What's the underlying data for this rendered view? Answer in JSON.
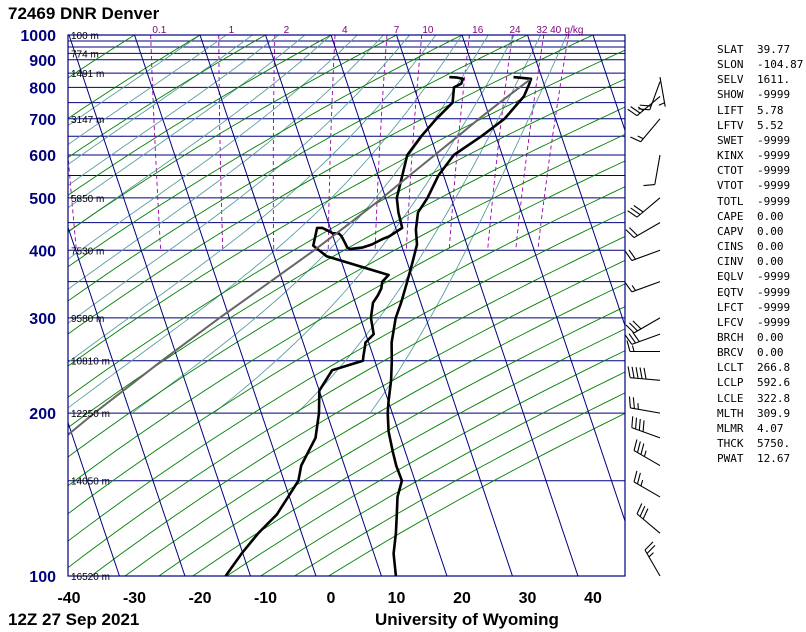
{
  "header": {
    "title": "72469 DNR Denver"
  },
  "footer": {
    "time": "12Z 27 Sep 2021",
    "source": "University of Wyoming"
  },
  "chart_data": {
    "type": "skew-t log-p",
    "pressure_ticks": [
      100,
      200,
      300,
      400,
      500,
      600,
      700,
      800,
      900,
      1000
    ],
    "temperature_ticks": [
      -40,
      -30,
      -20,
      -10,
      0,
      10,
      20,
      30,
      40
    ],
    "xlim": [
      -40,
      45
    ],
    "ylim_hpa": [
      1000,
      100
    ],
    "height_labels": [
      {
        "p": 100,
        "label": "16520 m"
      },
      {
        "p": 150,
        "label": "14050 m"
      },
      {
        "p": 200,
        "label": "12250 m"
      },
      {
        "p": 250,
        "label": "10810 m"
      },
      {
        "p": 300,
        "label": "9580 m"
      },
      {
        "p": 400,
        "label": "7530 m"
      },
      {
        "p": 500,
        "label": "5850 m"
      },
      {
        "p": 700,
        "label": "3147 m"
      },
      {
        "p": 850,
        "label": "1491 m"
      },
      {
        "p": 925,
        "label": "774 m"
      },
      {
        "p": 1000,
        "label": "100 m"
      }
    ],
    "mixing_ratio_labels": [
      {
        "w": "0.1",
        "t": -26.2
      },
      {
        "w": "1",
        "t": -15.2
      },
      {
        "w": "2",
        "t": -6.8
      },
      {
        "w": "4",
        "t": 2.1
      },
      {
        "w": "7",
        "t": 10
      },
      {
        "w": "10",
        "t": 14.8
      },
      {
        "w": "16",
        "t": 22.4
      },
      {
        "w": "24",
        "t": 28.1
      },
      {
        "w": "32",
        "t": 32.2
      },
      {
        "w": "40",
        "t": 34.3
      },
      {
        "w": "g/kg",
        "t": 37.1
      }
    ],
    "series": [
      {
        "name": "Temperature",
        "color": "#000000",
        "points": [
          [
            836,
            25.7
          ],
          [
            830,
            28.3
          ],
          [
            813,
            27.8
          ],
          [
            770,
            26.3
          ],
          [
            700,
            22.2
          ],
          [
            650,
            17.8
          ],
          [
            600,
            12.6
          ],
          [
            550,
            9.2
          ],
          [
            500,
            6.4
          ],
          [
            470,
            4.2
          ],
          [
            437,
            3.0
          ],
          [
            410,
            2.4
          ],
          [
            380,
            0.8
          ],
          [
            350,
            -1.0
          ],
          [
            320,
            -3.0
          ],
          [
            300,
            -4.6
          ],
          [
            270,
            -6.5
          ],
          [
            250,
            -7.4
          ],
          [
            230,
            -8.5
          ],
          [
            210,
            -10.0
          ],
          [
            200,
            -10.7
          ],
          [
            185,
            -11.5
          ],
          [
            170,
            -11.9
          ],
          [
            160,
            -12.1
          ],
          [
            150,
            -12.0
          ],
          [
            140,
            -13.5
          ],
          [
            130,
            -14.5
          ],
          [
            120,
            -15.6
          ],
          [
            110,
            -17.0
          ],
          [
            100,
            -17.8
          ]
        ]
      },
      {
        "name": "Dewpoint",
        "color": "#000000",
        "points": [
          [
            836,
            15.9
          ],
          [
            834,
            17.1
          ],
          [
            830,
            17.9
          ],
          [
            813,
            17.4
          ],
          [
            800,
            16.1
          ],
          [
            775,
            15.6
          ],
          [
            750,
            15.1
          ],
          [
            700,
            11.8
          ],
          [
            650,
            8.6
          ],
          [
            600,
            5.5
          ],
          [
            550,
            3.7
          ],
          [
            500,
            1.7
          ],
          [
            470,
            1.2
          ],
          [
            440,
            1.0
          ],
          [
            424,
            -1.5
          ],
          [
            420,
            -2.5
          ],
          [
            410,
            -4.5
          ],
          [
            405,
            -6.0
          ],
          [
            402,
            -8.1
          ],
          [
            405,
            -8.4
          ],
          [
            412,
            -8.5
          ],
          [
            425,
            -8.7
          ],
          [
            430,
            -9.0
          ],
          [
            430,
            -9.9
          ],
          [
            435,
            -10.5
          ],
          [
            440,
            -11.2
          ],
          [
            440,
            -12.0
          ],
          [
            410,
            -13.4
          ],
          [
            408,
            -13.5
          ],
          [
            390,
            -12.0
          ],
          [
            360,
            -3.5
          ],
          [
            350,
            -4.8
          ],
          [
            340,
            -5.3
          ],
          [
            330,
            -6.2
          ],
          [
            320,
            -7.3
          ],
          [
            300,
            -8.4
          ],
          [
            280,
            -8.8
          ],
          [
            270,
            -10.5
          ],
          [
            265,
            -10.8
          ],
          [
            255,
            -11.5
          ],
          [
            250,
            -11.8
          ],
          [
            240,
            -17.0
          ],
          [
            220,
            -20.0
          ],
          [
            200,
            -21.2
          ],
          [
            180,
            -23.0
          ],
          [
            160,
            -26.6
          ],
          [
            150,
            -27.8
          ],
          [
            140,
            -30.2
          ],
          [
            130,
            -32.8
          ],
          [
            120,
            -36.6
          ],
          [
            110,
            -40.2
          ],
          [
            100,
            -43.8
          ]
        ]
      },
      {
        "name": "Parcel",
        "color": "#666666",
        "points": [
          [
            827,
            28.1
          ],
          [
            800,
            26.1
          ],
          [
            750,
            22.3
          ],
          [
            700,
            18.3
          ],
          [
            650,
            14.2
          ],
          [
            600,
            9.7
          ],
          [
            550,
            4.8
          ],
          [
            500,
            -0.5
          ],
          [
            450,
            -6.6
          ],
          [
            400,
            -13.6
          ],
          [
            350,
            -21.9
          ],
          [
            300,
            -31.5
          ],
          [
            250,
            -42.5
          ],
          [
            200,
            -55.5
          ],
          [
            150,
            -71.5
          ],
          [
            100,
            -92.0
          ]
        ]
      }
    ],
    "wind_barbs": [
      {
        "p": 100,
        "dir": 330,
        "kt": 25
      },
      {
        "p": 120,
        "dir": 310,
        "kt": 30
      },
      {
        "p": 140,
        "dir": 300,
        "kt": 25
      },
      {
        "p": 160,
        "dir": 300,
        "kt": 35
      },
      {
        "p": 180,
        "dir": 290,
        "kt": 40
      },
      {
        "p": 200,
        "dir": 280,
        "kt": 25
      },
      {
        "p": 230,
        "dir": 275,
        "kt": 50
      },
      {
        "p": 260,
        "dir": 270,
        "kt": 15
      },
      {
        "p": 280,
        "dir": 250,
        "kt": 30
      },
      {
        "p": 300,
        "dir": 240,
        "kt": 30
      },
      {
        "p": 350,
        "dir": 250,
        "kt": 15
      },
      {
        "p": 400,
        "dir": 250,
        "kt": 20
      },
      {
        "p": 450,
        "dir": 240,
        "kt": 20
      },
      {
        "p": 500,
        "dir": 230,
        "kt": 30
      },
      {
        "p": 600,
        "dir": 190,
        "kt": 10
      },
      {
        "p": 700,
        "dir": 220,
        "kt": 15
      },
      {
        "p": 770,
        "dir": 230,
        "kt": 25
      },
      {
        "p": 820,
        "dir": 200,
        "kt": 20
      },
      {
        "p": 836,
        "dir": 170,
        "kt": 5
      }
    ]
  },
  "parameters": [
    {
      "name": "SLAT",
      "value": "39.77"
    },
    {
      "name": "SLON",
      "value": "-104.87"
    },
    {
      "name": "SELV",
      "value": "1611."
    },
    {
      "name": "SHOW",
      "value": "-9999"
    },
    {
      "name": "LIFT",
      "value": "5.78"
    },
    {
      "name": "LFTV",
      "value": "5.52"
    },
    {
      "name": "SWET",
      "value": "-9999"
    },
    {
      "name": "KINX",
      "value": "-9999"
    },
    {
      "name": "CTOT",
      "value": "-9999"
    },
    {
      "name": "VTOT",
      "value": "-9999"
    },
    {
      "name": "TOTL",
      "value": "-9999"
    },
    {
      "name": "CAPE",
      "value": "0.00"
    },
    {
      "name": "CAPV",
      "value": "0.00"
    },
    {
      "name": "CINS",
      "value": "0.00"
    },
    {
      "name": "CINV",
      "value": "0.00"
    },
    {
      "name": "EQLV",
      "value": "-9999"
    },
    {
      "name": "EQTV",
      "value": "-9999"
    },
    {
      "name": "LFCT",
      "value": "-9999"
    },
    {
      "name": "LFCV",
      "value": "-9999"
    },
    {
      "name": "BRCH",
      "value": "0.00"
    },
    {
      "name": "BRCV",
      "value": "0.00"
    },
    {
      "name": "LCLT",
      "value": "266.8"
    },
    {
      "name": "LCLP",
      "value": "592.6"
    },
    {
      "name": "LCLE",
      "value": "322.8"
    },
    {
      "name": "MLTH",
      "value": "309.9"
    },
    {
      "name": "MLMR",
      "value": "4.07"
    },
    {
      "name": "THCK",
      "value": "5750."
    },
    {
      "name": "PWAT",
      "value": "12.67"
    }
  ],
  "colors": {
    "isobar": "#00007f",
    "dry_adiabat": "#008000",
    "moist_adiabat": "#5f9ea0",
    "mixing_ratio": "#9900aa",
    "profile": "#000000",
    "parcel": "#666666"
  }
}
